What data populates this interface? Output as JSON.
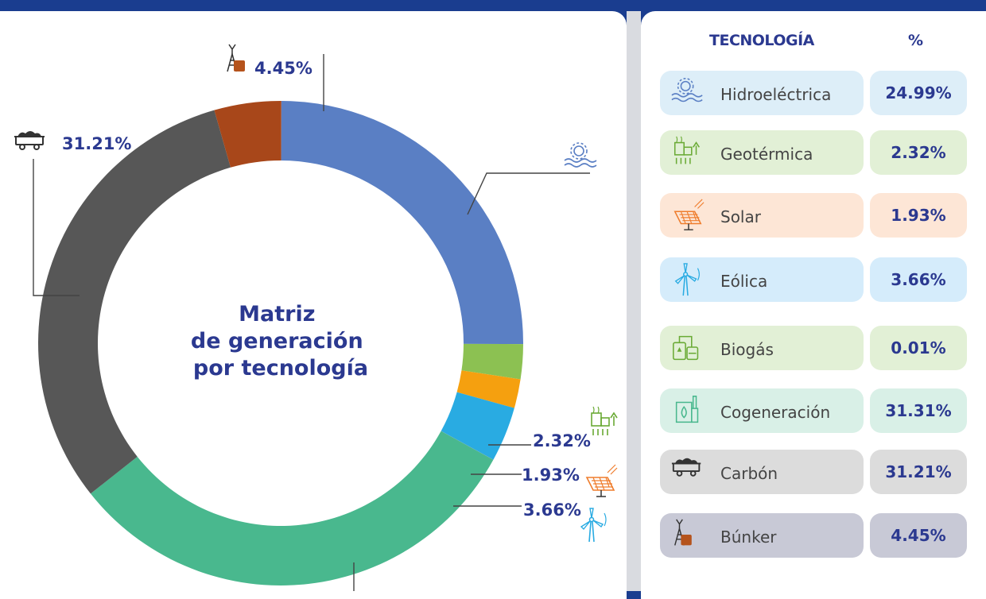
{
  "chart_data": {
    "type": "pie",
    "title": "Matriz\nde generación\npor tecnología",
    "slices": [
      {
        "label": "Hidroeléctrica",
        "value": 24.99,
        "color": "#5a7fc4"
      },
      {
        "label": "Geotérmica",
        "value": 2.32,
        "color": "#8cc152"
      },
      {
        "label": "Solar",
        "value": 1.93,
        "color": "#f5a00f"
      },
      {
        "label": "Eólica",
        "value": 3.66,
        "color": "#29abe2"
      },
      {
        "label": "Biogás",
        "value": 0.01,
        "color": "#6d7fa8"
      },
      {
        "label": "Cogeneración",
        "value": 31.31,
        "color": "#49b88e"
      },
      {
        "label": "Carbón",
        "value": 31.21,
        "color": "#575757"
      },
      {
        "label": "Búnker",
        "value": 4.45,
        "color": "#a8471a"
      }
    ],
    "data_labels": {
      "bunker": "4.45%",
      "hidro": "24.99%",
      "carbon": "31.21%",
      "geo": "2.32%",
      "solar": "1.93%",
      "eolica": "3.66%"
    }
  },
  "table": {
    "header_tech": "TECNOLOGÍA",
    "header_pct": "%",
    "rows": [
      {
        "label": "Hidroeléctrica",
        "pct": "24.99%",
        "icon": "hydro-icon",
        "bg": "#ddeef8",
        "pct_bg": "#ddeef8"
      },
      {
        "label": "Geotérmica",
        "pct": "2.32%",
        "icon": "geothermal-icon",
        "bg": "#e2f0d6",
        "pct_bg": "#e2f0d6"
      },
      {
        "label": "Solar",
        "pct": "1.93%",
        "icon": "solar-panel-icon",
        "bg": "#fde6d6",
        "pct_bg": "#fde6d6"
      },
      {
        "label": "Eólica",
        "pct": "3.66%",
        "icon": "wind-turbine-icon",
        "bg": "#d5ecfb",
        "pct_bg": "#d5ecfb"
      },
      {
        "label": "Biogás",
        "pct": "0.01%",
        "icon": "biogas-icon",
        "bg": "#e2f0d6",
        "pct_bg": "#e2f0d6"
      },
      {
        "label": "Cogeneración",
        "pct": "31.31%",
        "icon": "cogeneration-icon",
        "bg": "#d9f0e7",
        "pct_bg": "#d9f0e7"
      },
      {
        "label": "Carbón",
        "pct": "31.21%",
        "icon": "coal-cart-icon",
        "bg": "#dcdcdc",
        "pct_bg": "#dcdcdc"
      },
      {
        "label": "Búnker",
        "pct": "4.45%",
        "icon": "bunker-oil-icon",
        "bg": "#c8c9d6",
        "pct_bg": "#c8c9d6"
      }
    ]
  }
}
